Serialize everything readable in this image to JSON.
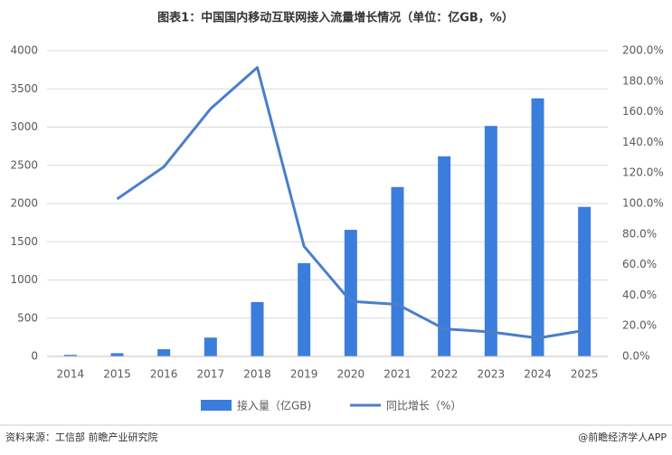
{
  "chart_data": {
    "type": "bar",
    "title": "图表1：中国国内移动互联网接入流量增长情况（单位：亿GB，%）",
    "categories": [
      "2014",
      "2015",
      "2016",
      "2017",
      "2018",
      "2019",
      "2020",
      "2021",
      "2022",
      "2023",
      "2024",
      "2025"
    ],
    "series": [
      {
        "name": "接入量（亿GB)",
        "type": "bar",
        "color": "#3b7ddd",
        "values": [
          20,
          42,
          94,
          246,
          711,
          1220,
          1656,
          2216,
          2618,
          3015,
          3376,
          1956
        ]
      },
      {
        "name": "同比增长（%）",
        "type": "line",
        "axis": "y2",
        "color": "#4a7fc9",
        "values": [
          null,
          103,
          124,
          162,
          189,
          72,
          36,
          34,
          18,
          16,
          12,
          17
        ]
      }
    ],
    "ylim": [
      0,
      4000
    ],
    "yticks": [
      0,
      500,
      1000,
      1500,
      2000,
      2500,
      3000,
      3500,
      4000
    ],
    "y2lim": [
      0,
      200
    ],
    "y2ticks": [
      {
        "value": 0,
        "label": "0.0%"
      },
      {
        "value": 20,
        "label": "20.0%"
      },
      {
        "value": 40,
        "label": "40.0%"
      },
      {
        "value": 60,
        "label": "60.0%"
      },
      {
        "value": 80,
        "label": "80.0%"
      },
      {
        "value": 100,
        "label": "100.0%"
      },
      {
        "value": 120,
        "label": "120.0%"
      },
      {
        "value": 140,
        "label": "140.0%"
      },
      {
        "value": 160,
        "label": "160.0%"
      },
      {
        "value": 180,
        "label": "180.0%"
      },
      {
        "value": 200,
        "label": "200.0%"
      }
    ],
    "grid": true
  },
  "footer": {
    "source": "资料来源：工信部 前瞻产业研究院",
    "brand": "@前瞻经济学人APP"
  }
}
